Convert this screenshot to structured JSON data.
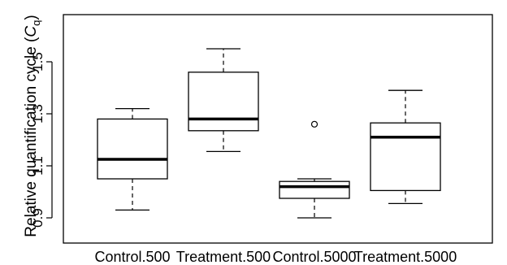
{
  "chart_data": {
    "type": "boxplot",
    "title": "",
    "xlabel": "",
    "ylabel": {
      "main": "Relative quantification cycle (",
      "symbol": "C",
      "subscript": "q",
      "close": ")"
    },
    "ylim": [
      0.88,
      1.6
    ],
    "yticks": [
      0.9,
      1.1,
      1.3,
      1.5
    ],
    "ytick_labels": [
      "0.9",
      "1.1",
      "1.3",
      "1.5"
    ],
    "grid": false,
    "categories": [
      "Control.500",
      "Treatment.500",
      "Control.5000",
      "Treatment.5000"
    ],
    "boxes": [
      {
        "whisker_low": 0.93,
        "q1": 1.05,
        "median": 1.125,
        "q3": 1.28,
        "whisker_high": 1.32,
        "outliers": []
      },
      {
        "whisker_low": 1.155,
        "q1": 1.235,
        "median": 1.28,
        "q3": 1.46,
        "whisker_high": 1.55,
        "outliers": []
      },
      {
        "whisker_low": 0.9,
        "q1": 0.975,
        "median": 1.02,
        "q3": 1.04,
        "whisker_high": 1.05,
        "outliers": [
          1.26
        ]
      },
      {
        "whisker_low": 0.955,
        "q1": 1.005,
        "median": 1.21,
        "q3": 1.265,
        "whisker_high": 1.39,
        "outliers": []
      }
    ]
  }
}
